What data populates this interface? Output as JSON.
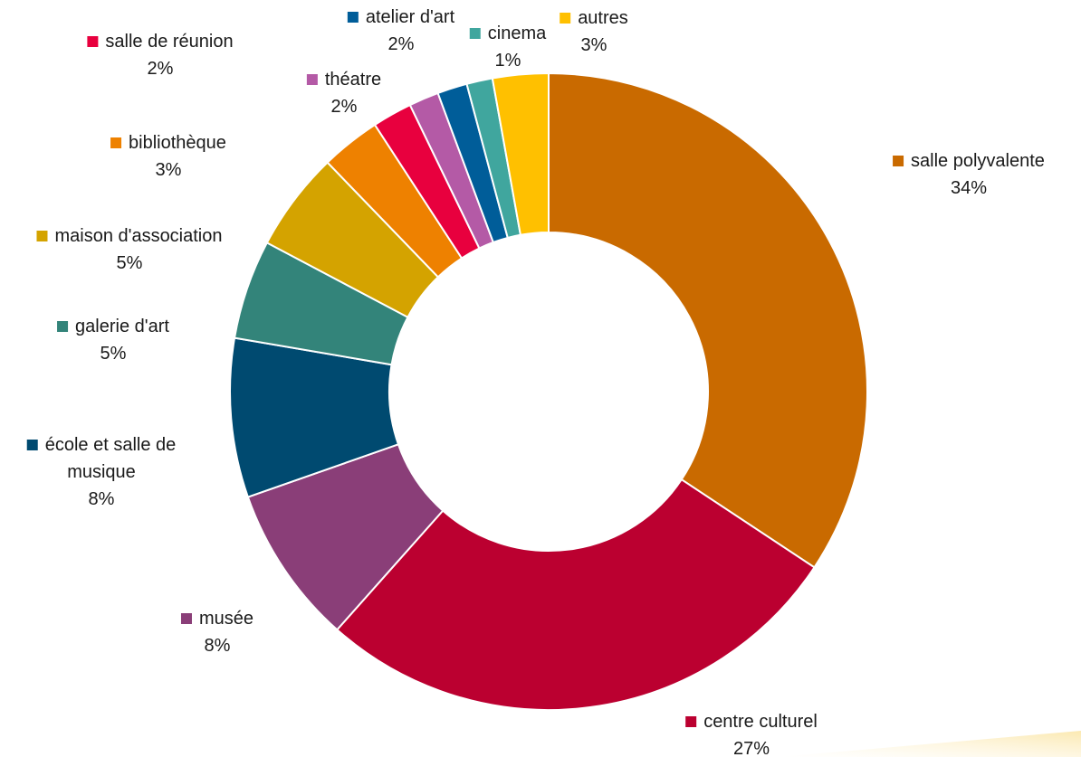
{
  "chart_data": {
    "type": "donut",
    "title": "",
    "legend": "none",
    "slices": [
      {
        "label": "salle polyvalente",
        "label_lines": [
          "salle polyvalente"
        ],
        "value": 34,
        "value_label": "34%",
        "color": "#C96A00"
      },
      {
        "label": "centre culturel",
        "label_lines": [
          "centre culturel"
        ],
        "value": 27,
        "value_label": "27%",
        "color": "#BB0030"
      },
      {
        "label": "musée",
        "label_lines": [
          "musée"
        ],
        "value": 8,
        "value_label": "8%",
        "color": "#8A3E78"
      },
      {
        "label": "école et salle de musique",
        "label_lines": [
          "école et salle de",
          "musique"
        ],
        "value": 8,
        "value_label": "8%",
        "color": "#004A70"
      },
      {
        "label": "galerie d'art",
        "label_lines": [
          "galerie d'art"
        ],
        "value": 5,
        "value_label": "5%",
        "color": "#33847A"
      },
      {
        "label": "maison d'association",
        "label_lines": [
          "maison d'association"
        ],
        "value": 5,
        "value_label": "5%",
        "color": "#D4A300"
      },
      {
        "label": "bibliothèque",
        "label_lines": [
          "bibliothèque"
        ],
        "value": 3,
        "value_label": "3%",
        "color": "#EE8100"
      },
      {
        "label": "salle de réunion",
        "label_lines": [
          "salle de réunion"
        ],
        "value": 2,
        "value_label": "2%",
        "color": "#E8003E"
      },
      {
        "label": "théatre",
        "label_lines": [
          "théatre"
        ],
        "value": 1.5,
        "value_label": "2%",
        "color": "#B45AA6"
      },
      {
        "label": "atelier d'art",
        "label_lines": [
          "atelier d'art"
        ],
        "value": 1.5,
        "value_label": "2%",
        "color": "#005D99"
      },
      {
        "label": "cinema",
        "label_lines": [
          "cinema"
        ],
        "value": 1.3,
        "value_label": "1%",
        "color": "#40A69E"
      },
      {
        "label": "autres",
        "label_lines": [
          "autres"
        ],
        "value": 2.8,
        "value_label": "3%",
        "color": "#FFC000"
      }
    ]
  }
}
